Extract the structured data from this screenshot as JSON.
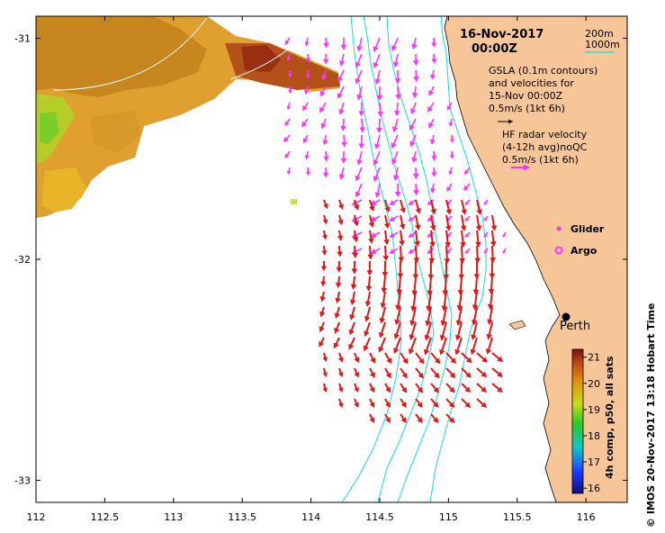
{
  "map": {
    "date_line": "16-Nov-2017",
    "time_line": "00:00Z",
    "contour_200": "200m",
    "contour_1000": "1000m",
    "gsla_line1": "GSLA (0.1m contours)",
    "gsla_line2": "and velocities for",
    "gsla_line3": "15-Nov 00:00Z",
    "gsla_scale": "0.5m/s (1kt 6h)",
    "hf_line1": "HF radar velocity",
    "hf_line2": "(4-12h avg)noQC",
    "hf_scale": "0.5m/s (1kt 6h)",
    "glider_label": "Glider",
    "argo_label": "Argo",
    "city_label": "Perth",
    "side_label": "© IMOS 20-Nov-2017 13:18 Hobart Time",
    "x_ticks": [
      "112",
      "112.5",
      "113",
      "113.5",
      "114",
      "114.5",
      "115",
      "115.5",
      "116"
    ],
    "y_ticks": [
      "-31",
      "-32",
      "-33"
    ],
    "colorbar": {
      "title": "4h comp, p50, all sats",
      "ticks": [
        "21",
        "20",
        "19",
        "18",
        "17",
        "16"
      ],
      "min": 15.8,
      "max": 21.3
    },
    "colors": {
      "land": "#f7c698",
      "contour": "#19d9d9",
      "hf_arrow": "#e01818",
      "gsla_arrow": "#ff33ff",
      "frame": "#000000"
    },
    "extent": {
      "lon_min": 112,
      "lon_max": 116.3,
      "lat_min": -33.1,
      "lat_max": -30.9
    }
  }
}
